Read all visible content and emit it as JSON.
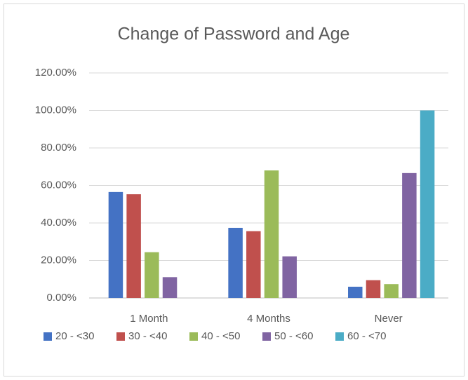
{
  "chart_data": {
    "type": "bar",
    "title": "Change of Password and Age",
    "categories": [
      "1 Month",
      "4 Months",
      "Never"
    ],
    "series": [
      {
        "name": "20 - <30",
        "color": "#4472c4",
        "values": [
          56.5,
          37.4,
          6
        ]
      },
      {
        "name": "30 - <40",
        "color": "#c0504d",
        "values": [
          55.3,
          35.6,
          9.5
        ]
      },
      {
        "name": "40 - <50",
        "color": "#9bbb59",
        "values": [
          24.4,
          68,
          7.4
        ]
      },
      {
        "name": "50 - <60",
        "color": "#8064a2",
        "values": [
          11.1,
          22.2,
          66.6
        ]
      },
      {
        "name": "60 - <70",
        "color": "#4bacc6",
        "values": [
          0,
          0,
          100
        ]
      }
    ],
    "ylim": [
      0,
      120
    ],
    "yticks": [
      {
        "value": 0,
        "label": "0.00%"
      },
      {
        "value": 20,
        "label": "20.00%"
      },
      {
        "value": 40,
        "label": "40.00%"
      },
      {
        "value": 60,
        "label": "60.00%"
      },
      {
        "value": 80,
        "label": "80.00%"
      },
      {
        "value": 100,
        "label": "100.00%"
      },
      {
        "value": 120,
        "label": "120.00%"
      }
    ],
    "grid": true,
    "legend": "bottom"
  }
}
